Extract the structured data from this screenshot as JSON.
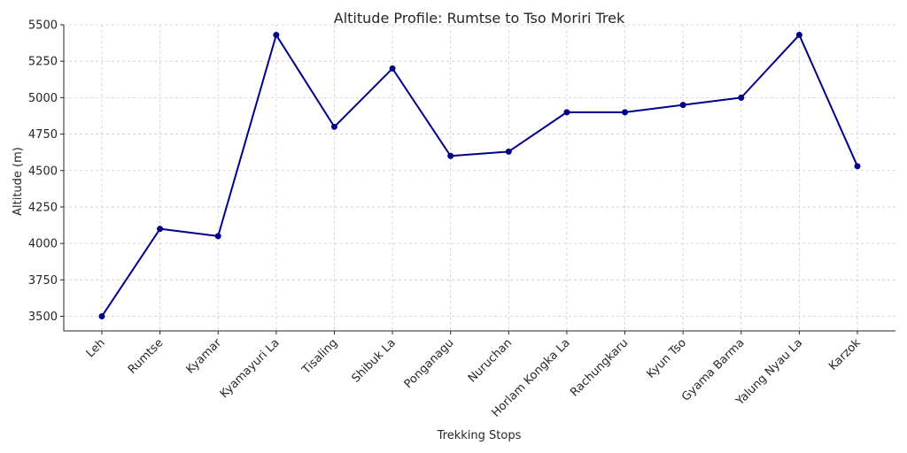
{
  "chart_data": {
    "type": "line",
    "title": "Altitude Profile: Rumtse to Tso Moriri Trek",
    "xlabel": "Trekking Stops",
    "ylabel": "Altitude (m)",
    "categories": [
      "Leh",
      "Rumtse",
      "Kyamar",
      "Kyamayuri La",
      "Tisaling",
      "Shibuk La",
      "Ponganagu",
      "Nuruchan",
      "Horlam Kongka La",
      "Rachungkaru",
      "Kyun Tso",
      "Gyama Barma",
      "Yalung Nyau La",
      "Karzok"
    ],
    "series": [
      {
        "values": [
          3500,
          4100,
          4050,
          5430,
          4800,
          5200,
          4600,
          4630,
          4900,
          4900,
          4950,
          5000,
          5430,
          4530
        ],
        "color": "#00008b",
        "marker": "circle"
      }
    ],
    "yticks": [
      "3500",
      "3750",
      "4000",
      "4250",
      "4500",
      "4750",
      "5000",
      "5250",
      "5500"
    ],
    "ylim": [
      3400,
      5500
    ],
    "grid": true,
    "legend": "none"
  }
}
